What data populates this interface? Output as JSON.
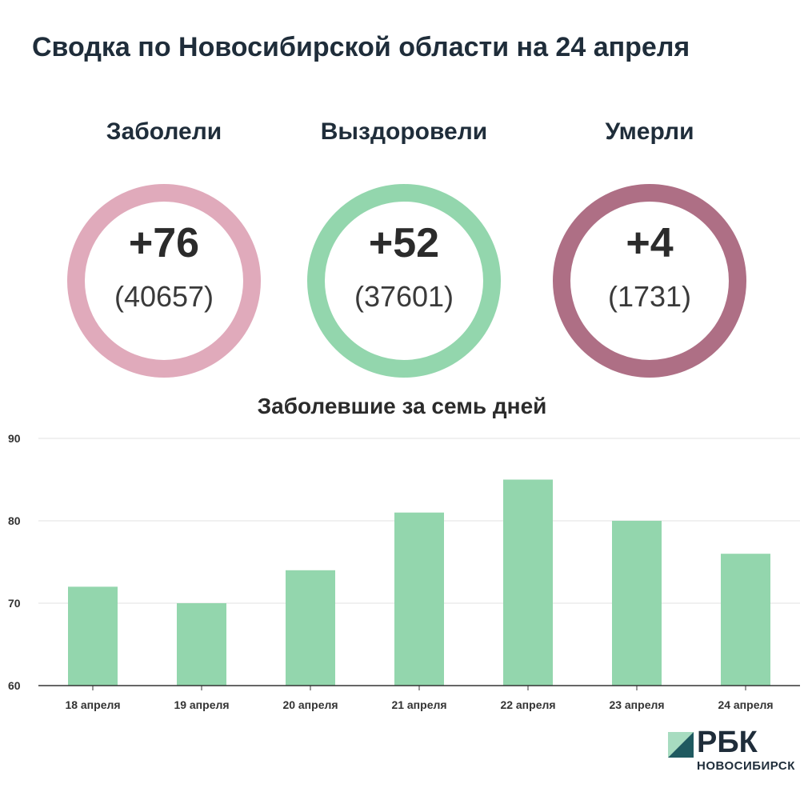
{
  "title": "Сводка по Новосибирской области на 24 апреля",
  "stats": [
    {
      "label": "Заболели",
      "delta": "+76",
      "total": "(40657)",
      "color": "#e0aabb"
    },
    {
      "label": "Выздоровели",
      "delta": "+52",
      "total": "(37601)",
      "color": "#93d6ad"
    },
    {
      "label": "Умерли",
      "delta": "+4",
      "total": "(1731)",
      "color": "#ae6f85"
    }
  ],
  "chart_data": {
    "type": "bar",
    "title": "Заболевшие за семь дней",
    "categories": [
      "18 апреля",
      "19 апреля",
      "20 апреля",
      "21 апреля",
      "22 апреля",
      "23 апреля",
      "24 апреля"
    ],
    "values": [
      72,
      70,
      74,
      81,
      85,
      80,
      76
    ],
    "ylim": [
      60,
      90
    ],
    "yticks": [
      60,
      70,
      80,
      90
    ],
    "grid": true,
    "bar_color": "#93d6ad",
    "xlabel": "",
    "ylabel": ""
  },
  "logo": {
    "name": "РБК",
    "sub": "НОВОСИБИРСК"
  }
}
